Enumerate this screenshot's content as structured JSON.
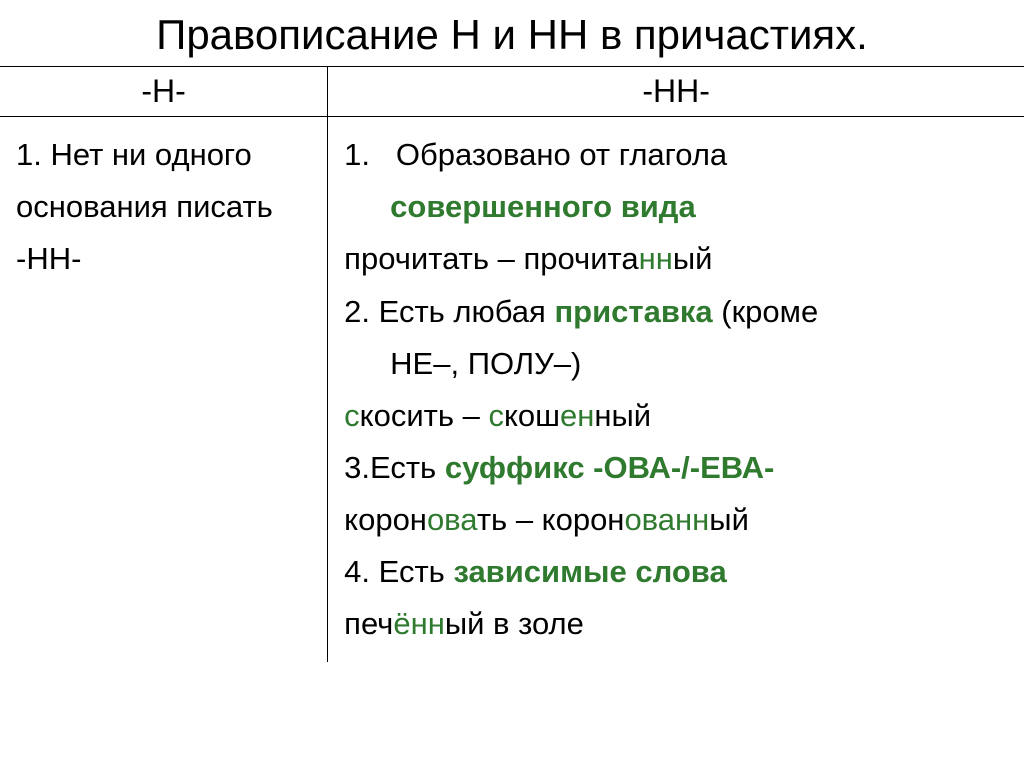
{
  "title": "Правописание Н и НН в причастиях.",
  "headers": {
    "left": "-Н-",
    "right": "-НН-"
  },
  "leftCell": {
    "l1": "1. Нет ни одного",
    "l2": "основания писать",
    "l3": "-НН-"
  },
  "rightCell": {
    "r1_a": "1.",
    "r1_b": "Образовано от глагола",
    "r1_c": "совершенного вида",
    "r1_d1": "прочитать – прочита",
    "r1_d2": "нн",
    "r1_d3": "ый",
    "r2_a": "2. Есть любая ",
    "r2_b": "приставка",
    "r2_c": " (кроме",
    "r2_d": "НЕ–, ПОЛУ–)",
    "r2_e1": "с",
    "r2_e2": "косить – ",
    "r2_e3": "с",
    "r2_e4": "кош",
    "r2_e5": "ен",
    "r2_e6": "н",
    "r2_e7": "ый",
    "r3_a": "3.Есть ",
    "r3_b": "суффикс -ОВА-/-ЕВА-",
    "r3_c1": "корон",
    "r3_c2": "ова",
    "r3_c3": "ть – корон",
    "r3_c4": "ова",
    "r3_c5": "нн",
    "r3_c6": "ый",
    "r4_a": "4. Есть ",
    "r4_b": "зависимые слова",
    "r4_c1": "печ",
    "r4_c2": "ённ",
    "r4_c3": "ый в золе"
  },
  "colors": {
    "text": "#000000",
    "accent": "#2f7a2f",
    "border": "#000000",
    "background": "#ffffff"
  },
  "fontsize": {
    "title": 42,
    "header": 32,
    "body": 31
  }
}
